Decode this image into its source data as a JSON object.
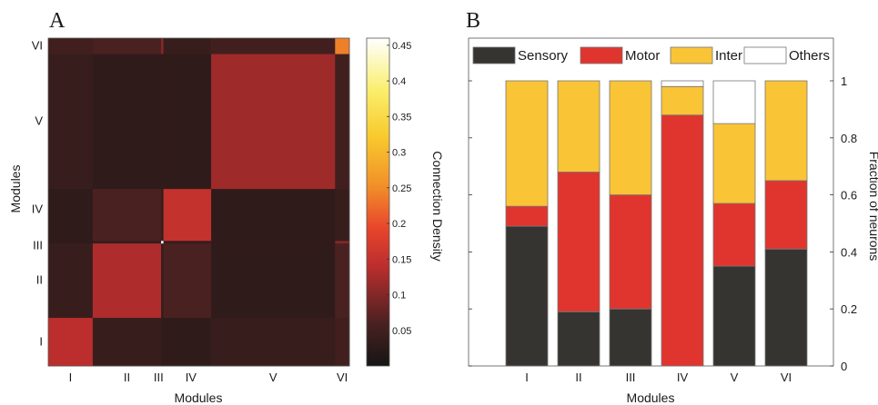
{
  "chart_data": [
    {
      "type": "heatmap",
      "panel_label": "A",
      "xlabel": "Modules",
      "ylabel": "Modules",
      "colorbar_label": "Connection Density",
      "colorbar_ticks": [
        "0.05",
        "0.1",
        "0.15",
        "0.2",
        "0.25",
        "0.3",
        "0.35",
        "0.4",
        "0.45"
      ],
      "colorbar_range": [
        0.0,
        0.46
      ],
      "modules": [
        "I",
        "II",
        "III",
        "IV",
        "V",
        "VI"
      ],
      "module_sizes": [
        56,
        86,
        3,
        60,
        156,
        18
      ],
      "bottom_to_top_order": [
        "I",
        "II",
        "III",
        "IV",
        "V",
        "VI"
      ],
      "density_matrix": [
        [
          0.14,
          0.04,
          0.03,
          0.03,
          0.04,
          0.05
        ],
        [
          0.04,
          0.13,
          0.04,
          0.06,
          0.03,
          0.06
        ],
        [
          0.03,
          0.04,
          0.46,
          0.04,
          0.03,
          0.1
        ],
        [
          0.03,
          0.06,
          0.04,
          0.15,
          0.03,
          0.04
        ],
        [
          0.04,
          0.03,
          0.03,
          0.03,
          0.12,
          0.05
        ],
        [
          0.05,
          0.06,
          0.1,
          0.04,
          0.05,
          0.24
        ]
      ]
    },
    {
      "type": "bar",
      "stacked": true,
      "panel_label": "B",
      "xlabel": "Modules",
      "ylabel": "Fraction of neurons",
      "categories": [
        "I",
        "II",
        "III",
        "IV",
        "V",
        "VI"
      ],
      "ylim": [
        0,
        1
      ],
      "yticks": [
        "0",
        "0.2",
        "0.4",
        "0.6",
        "0.8",
        "1"
      ],
      "y_axis_side": "right",
      "legend_position": "top",
      "series": [
        {
          "name": "Sensory",
          "color": "#363431",
          "values": [
            0.49,
            0.19,
            0.2,
            0.0,
            0.35,
            0.41
          ]
        },
        {
          "name": "Motor",
          "color": "#e0352e",
          "values": [
            0.07,
            0.49,
            0.4,
            0.88,
            0.22,
            0.24
          ]
        },
        {
          "name": "Inter",
          "color": "#f9c436",
          "values": [
            0.44,
            0.32,
            0.4,
            0.1,
            0.28,
            0.35
          ]
        },
        {
          "name": "Others",
          "color": "#ffffff",
          "values": [
            0.0,
            0.0,
            0.0,
            0.02,
            0.15,
            0.0
          ]
        }
      ]
    }
  ]
}
